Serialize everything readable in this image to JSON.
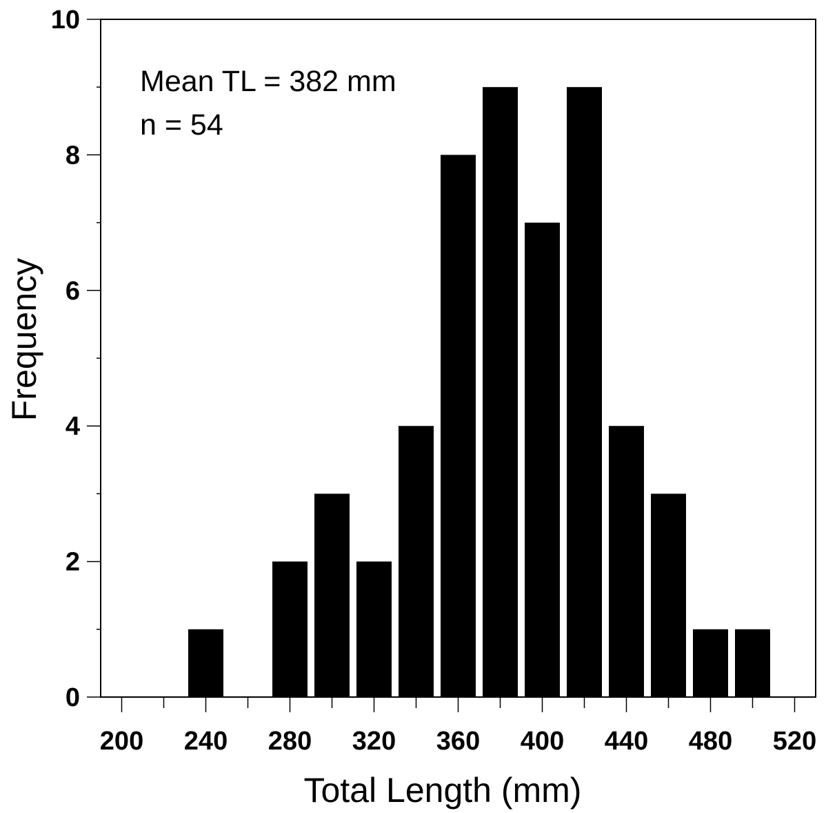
{
  "chart_data": {
    "type": "bar",
    "title": "",
    "xlabel": "Total Length (mm)",
    "ylabel": "Frequency",
    "xlim": [
      190,
      530
    ],
    "ylim": [
      0,
      10
    ],
    "bin_width": 20,
    "x": [
      240,
      280,
      300,
      320,
      340,
      360,
      380,
      400,
      420,
      440,
      460,
      480,
      500
    ],
    "values": [
      1,
      2,
      3,
      2,
      4,
      8,
      9,
      7,
      9,
      4,
      3,
      1,
      1
    ],
    "x_ticks": [
      200,
      240,
      280,
      320,
      360,
      400,
      440,
      480,
      520
    ],
    "x_tick_labels": [
      "200",
      "240",
      "280",
      "320",
      "360",
      "400",
      "440",
      "480",
      "520"
    ],
    "y_ticks": [
      0,
      2,
      4,
      6,
      8,
      10
    ],
    "y_tick_labels": [
      "0",
      "2",
      "4",
      "6",
      "8",
      "10"
    ],
    "annotations": [
      "Mean TL = 382 mm",
      "n = 54"
    ],
    "grid": false,
    "bar_color": "#000000"
  }
}
